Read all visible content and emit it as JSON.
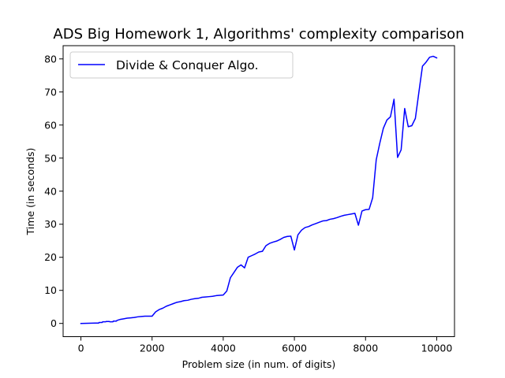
{
  "chart_data": {
    "type": "line",
    "title": "ADS Big Homework 1, Algorithms' complexity comparison",
    "xlabel": "Problem size (in num. of digits)",
    "ylabel": "Time (in seconds)",
    "xlim": [
      -500,
      10500
    ],
    "ylim": [
      -4,
      84
    ],
    "xticks": [
      0,
      2000,
      4000,
      6000,
      8000,
      10000
    ],
    "yticks": [
      0,
      10,
      20,
      30,
      40,
      50,
      60,
      70,
      80
    ],
    "xtick_labels": [
      "0",
      "2000",
      "4000",
      "6000",
      "8000",
      "10000"
    ],
    "ytick_labels": [
      "0",
      "10",
      "20",
      "30",
      "40",
      "50",
      "60",
      "70",
      "80"
    ],
    "grid": false,
    "legend_position": "upper-left",
    "series": [
      {
        "name": "Divide & Conquer Algo.",
        "color": "#0000ff",
        "x": [
          0,
          100,
          200,
          300,
          400,
          500,
          510,
          600,
          610,
          700,
          710,
          800,
          810,
          900,
          910,
          1000,
          1010,
          1100,
          1200,
          1300,
          1400,
          1500,
          1600,
          1700,
          1800,
          1900,
          2000,
          2100,
          2200,
          2300,
          2400,
          2500,
          2600,
          2700,
          2800,
          2900,
          3000,
          3100,
          3200,
          3300,
          3400,
          3500,
          3600,
          3700,
          3800,
          3900,
          4000,
          4100,
          4200,
          4300,
          4400,
          4500,
          4600,
          4700,
          4800,
          4900,
          5000,
          5100,
          5200,
          5300,
          5400,
          5500,
          5600,
          5700,
          5800,
          5900,
          6000,
          6100,
          6200,
          6300,
          6400,
          6500,
          6600,
          6700,
          6800,
          6900,
          7000,
          7100,
          7200,
          7300,
          7400,
          7500,
          7600,
          7700,
          7800,
          7900,
          8000,
          8100,
          8200,
          8300,
          8400,
          8500,
          8600,
          8700,
          8800,
          8900,
          9000,
          9100,
          9200,
          9300,
          9400,
          9500,
          9600,
          9700,
          9800,
          9900,
          10000
        ],
        "values": [
          0.0,
          0.02,
          0.04,
          0.07,
          0.1,
          0.1,
          0.3,
          0.3,
          0.5,
          0.5,
          0.6,
          0.6,
          0.5,
          0.5,
          0.7,
          0.7,
          0.9,
          1.2,
          1.4,
          1.6,
          1.7,
          1.8,
          2.0,
          2.1,
          2.2,
          2.2,
          2.2,
          3.5,
          4.2,
          4.6,
          5.2,
          5.6,
          6.0,
          6.4,
          6.6,
          6.9,
          7.0,
          7.3,
          7.5,
          7.6,
          7.9,
          8.0,
          8.1,
          8.2,
          8.4,
          8.5,
          8.6,
          9.8,
          13.8,
          15.4,
          17.0,
          17.7,
          16.8,
          20.0,
          20.5,
          21.0,
          21.6,
          21.8,
          23.5,
          24.2,
          24.6,
          24.9,
          25.4,
          26.0,
          26.3,
          26.4,
          22.2,
          26.8,
          28.2,
          29.0,
          29.3,
          29.8,
          30.2,
          30.6,
          31.0,
          31.1,
          31.5,
          31.7,
          32.0,
          32.4,
          32.7,
          32.9,
          33.1,
          33.3,
          29.7,
          34.0,
          34.4,
          34.5,
          38.0,
          49.5,
          54.5,
          59.0,
          61.5,
          62.5,
          67.8,
          50.2,
          52.5,
          65.0,
          59.5,
          59.8,
          62.0,
          70.0,
          77.8,
          79.0,
          80.5,
          80.8,
          80.3
        ]
      }
    ]
  }
}
